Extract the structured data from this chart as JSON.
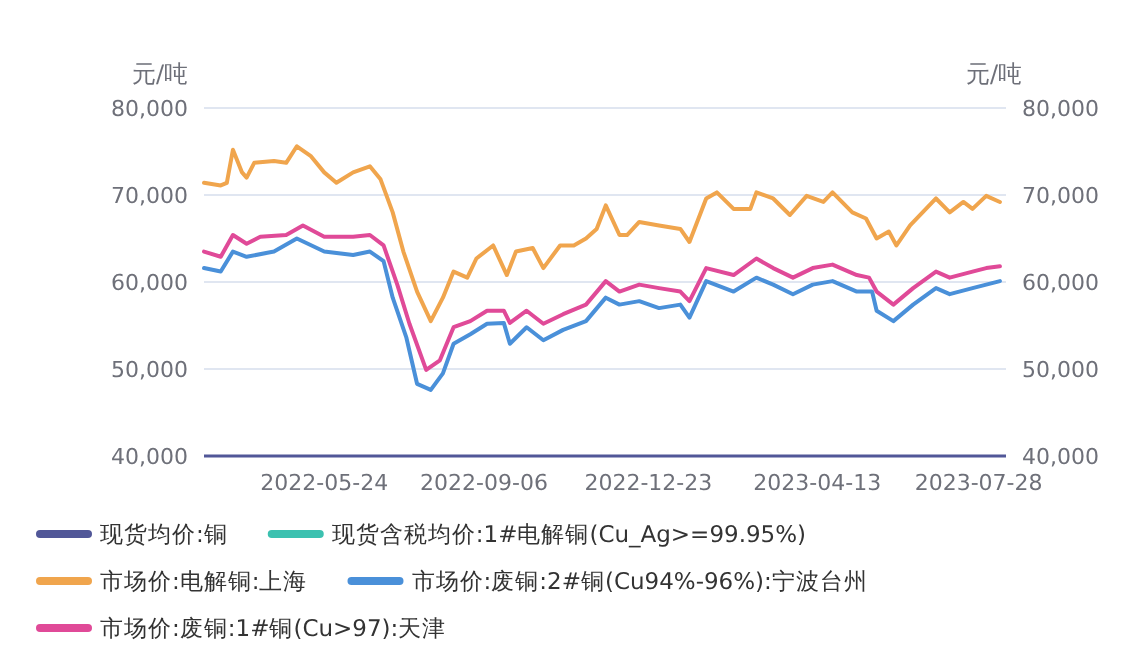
{
  "chart_data": {
    "type": "line",
    "ylabel": "元/吨",
    "y2label": "元/吨",
    "xlim": [
      "2022-03-06",
      "2023-08-15"
    ],
    "xticks": [
      "2022-05-24",
      "2022-09-06",
      "2022-12-23",
      "2023-04-13",
      "2023-07-28"
    ],
    "ylim": [
      40000,
      80000
    ],
    "yticks": [
      {
        "value": 40000,
        "label": "40,000"
      },
      {
        "value": 50000,
        "label": "50,000"
      },
      {
        "value": 60000,
        "label": "60,000"
      },
      {
        "value": 70000,
        "label": "70,000"
      },
      {
        "value": 80000,
        "label": "80,000"
      }
    ],
    "y2lim": [
      40000,
      80000
    ],
    "y2ticks": [
      {
        "value": 40000,
        "label": "40,000"
      },
      {
        "value": 50000,
        "label": "50,000"
      },
      {
        "value": 60000,
        "label": "60,000"
      },
      {
        "value": 70000,
        "label": "70,000"
      },
      {
        "value": 80000,
        "label": "80,000"
      }
    ],
    "grid": "y",
    "legend": "bottom",
    "marker": "none",
    "line_style": "solid",
    "series": [
      {
        "name": "现货均价:铜",
        "color": "#515798"
      },
      {
        "name": "现货含税均价:1#电解铜(Cu_Ag>=99.95%)",
        "color": "#3cc1b0"
      },
      {
        "name": "市场价:电解铜:上海",
        "color": "#f0a54d",
        "x": [
          "2022-03-06",
          "2022-03-17",
          "2022-03-21",
          "2022-03-25",
          "2022-03-31",
          "2022-04-03",
          "2022-04-08",
          "2022-04-21",
          "2022-04-29",
          "2022-05-06",
          "2022-05-15",
          "2022-05-24",
          "2022-06-01",
          "2022-06-12",
          "2022-06-23",
          "2022-06-30",
          "2022-07-08",
          "2022-07-15",
          "2022-07-24",
          "2022-08-02",
          "2022-08-10",
          "2022-08-17",
          "2022-08-26",
          "2022-09-01",
          "2022-09-12",
          "2022-09-21",
          "2022-09-27",
          "2022-10-08",
          "2022-10-15",
          "2022-10-26",
          "2022-11-04",
          "2022-11-12",
          "2022-11-19",
          "2022-11-25",
          "2022-12-04",
          "2022-12-09",
          "2022-12-17",
          "2022-12-30",
          "2023-01-13",
          "2023-01-19",
          "2023-01-30",
          "2023-02-06",
          "2023-02-17",
          "2023-02-28",
          "2023-03-04",
          "2023-03-15",
          "2023-03-26",
          "2023-04-06",
          "2023-04-17",
          "2023-04-23",
          "2023-05-06",
          "2023-05-15",
          "2023-05-22",
          "2023-05-30",
          "2023-06-04",
          "2023-06-13",
          "2023-06-30",
          "2023-07-09",
          "2023-07-18",
          "2023-07-24",
          "2023-08-02",
          "2023-08-11"
        ],
        "values": [
          71400,
          71100,
          71400,
          75200,
          72600,
          72000,
          73700,
          73900,
          73700,
          75600,
          74500,
          72600,
          71400,
          72600,
          73300,
          71800,
          68000,
          63500,
          58900,
          55500,
          58200,
          61200,
          60500,
          62700,
          64200,
          60800,
          63500,
          63900,
          61600,
          64200,
          64200,
          65000,
          66100,
          68800,
          65400,
          65400,
          66900,
          66500,
          66100,
          64600,
          69600,
          70300,
          68400,
          68400,
          70300,
          69600,
          67700,
          69900,
          69200,
          70300,
          68000,
          67300,
          65000,
          65800,
          64200,
          66500,
          69600,
          68000,
          69200,
          68400,
          69900,
          69200
        ]
      },
      {
        "name": "市场价:废铜:2#铜(Cu94%-96%):宁波台州",
        "color": "#4a90d9",
        "x": [
          "2022-03-06",
          "2022-03-17",
          "2022-03-25",
          "2022-04-03",
          "2022-04-21",
          "2022-05-06",
          "2022-05-24",
          "2022-06-12",
          "2022-06-23",
          "2022-07-02",
          "2022-07-08",
          "2022-07-17",
          "2022-07-24",
          "2022-08-02",
          "2022-08-10",
          "2022-08-17",
          "2022-08-28",
          "2022-09-08",
          "2022-09-19",
          "2022-09-23",
          "2022-10-04",
          "2022-10-15",
          "2022-10-28",
          "2022-11-12",
          "2022-11-25",
          "2022-12-04",
          "2022-12-17",
          "2022-12-30",
          "2023-01-13",
          "2023-01-19",
          "2023-01-30",
          "2023-02-17",
          "2023-03-04",
          "2023-03-15",
          "2023-03-28",
          "2023-04-10",
          "2023-04-23",
          "2023-05-09",
          "2023-05-19",
          "2023-05-22",
          "2023-06-02",
          "2023-06-15",
          "2023-06-30",
          "2023-07-09",
          "2023-07-24",
          "2023-08-02",
          "2023-08-11"
        ],
        "values": [
          61600,
          61200,
          63500,
          62900,
          63500,
          65000,
          63500,
          63100,
          63500,
          62400,
          58200,
          53600,
          48300,
          47600,
          49500,
          52900,
          54000,
          55200,
          55300,
          52900,
          54800,
          53300,
          54500,
          55500,
          58200,
          57400,
          57800,
          57000,
          57400,
          55900,
          60100,
          58900,
          60500,
          59700,
          58600,
          59700,
          60100,
          58900,
          58900,
          56700,
          55500,
          57400,
          59300,
          58600,
          59300,
          59700,
          60100
        ]
      },
      {
        "name": "市场价:废铜:1#铜(Cu>97):天津",
        "color": "#e04a98",
        "x": [
          "2022-03-06",
          "2022-03-17",
          "2022-03-25",
          "2022-04-03",
          "2022-04-12",
          "2022-04-29",
          "2022-05-10",
          "2022-05-24",
          "2022-06-12",
          "2022-06-23",
          "2022-07-02",
          "2022-07-11",
          "2022-07-19",
          "2022-07-30",
          "2022-08-08",
          "2022-08-17",
          "2022-08-28",
          "2022-09-08",
          "2022-09-19",
          "2022-09-23",
          "2022-10-04",
          "2022-10-15",
          "2022-10-28",
          "2022-11-12",
          "2022-11-25",
          "2022-12-04",
          "2022-12-17",
          "2022-12-30",
          "2023-01-13",
          "2023-01-19",
          "2023-01-30",
          "2023-02-17",
          "2023-03-04",
          "2023-03-15",
          "2023-03-28",
          "2023-04-10",
          "2023-04-23",
          "2023-05-09",
          "2023-05-17",
          "2023-05-22",
          "2023-06-02",
          "2023-06-15",
          "2023-06-30",
          "2023-07-09",
          "2023-07-24",
          "2023-08-02",
          "2023-08-11"
        ],
        "values": [
          63500,
          62900,
          65400,
          64400,
          65200,
          65400,
          66500,
          65200,
          65200,
          65400,
          64200,
          59700,
          55200,
          49900,
          51000,
          54800,
          55500,
          56700,
          56700,
          55300,
          56700,
          55200,
          56300,
          57400,
          60100,
          58900,
          59700,
          59300,
          58900,
          57800,
          61600,
          60800,
          62700,
          61600,
          60500,
          61600,
          62000,
          60800,
          60500,
          58900,
          57400,
          59300,
          61200,
          60500,
          61200,
          61600,
          61800
        ]
      }
    ]
  }
}
